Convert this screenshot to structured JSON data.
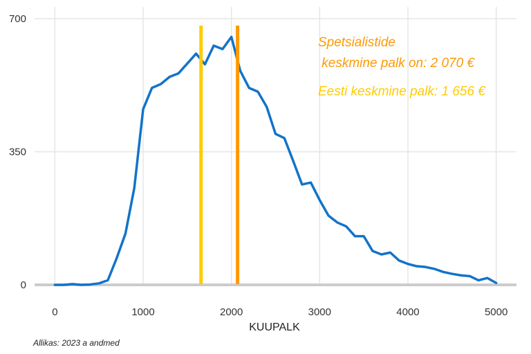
{
  "chart_data": {
    "type": "line",
    "title": "",
    "xlabel": "KUUPALK",
    "ylabel": "",
    "xlim": [
      -230,
      5230
    ],
    "ylim": [
      0,
      700
    ],
    "xticks": [
      0,
      1000,
      2000,
      3000,
      4000,
      5000
    ],
    "xtick_labels": [
      "0",
      "1000",
      "2000",
      "3000",
      "4000",
      "5000"
    ],
    "yticks": [
      0,
      350,
      700
    ],
    "ytick_labels": [
      "0",
      "350",
      "700"
    ],
    "grid": true,
    "series": [
      {
        "color": "#1273c9",
        "x": [
          0,
          100,
          200,
          300,
          400,
          500,
          600,
          700,
          800,
          900,
          1000,
          1100,
          1200,
          1300,
          1400,
          1500,
          1600,
          1700,
          1800,
          1900,
          2000,
          2100,
          2200,
          2300,
          2400,
          2500,
          2600,
          2700,
          2800,
          2900,
          3000,
          3100,
          3200,
          3300,
          3400,
          3500,
          3600,
          3700,
          3800,
          3900,
          4000,
          4100,
          4200,
          4300,
          4400,
          4500,
          4600,
          4700,
          4800,
          4900,
          5000
        ],
        "y": [
          0,
          0,
          2,
          0,
          1,
          4,
          12,
          70,
          135,
          255,
          462,
          518,
          528,
          547,
          556,
          582,
          608,
          580,
          629,
          620,
          652,
          563,
          518,
          508,
          468,
          397,
          386,
          326,
          264,
          269,
          223,
          182,
          164,
          154,
          128,
          128,
          89,
          80,
          85,
          64,
          55,
          49,
          47,
          42,
          34,
          29,
          25,
          23,
          12,
          18,
          5
        ]
      }
    ],
    "vlines": [
      {
        "x": 1656,
        "color": "#ffcc00"
      },
      {
        "x": 2070,
        "color": "#ff9900"
      }
    ],
    "annotations": {
      "line1": "Spetsialistide",
      "line2": " keskmine palk on: 2 070 €",
      "line3": "Eesti keskmine palk: 1 656 €",
      "color_orange": "#ff9900",
      "color_yellow": "#ffcc00"
    },
    "source": "Allikas: 2023 a andmed"
  }
}
